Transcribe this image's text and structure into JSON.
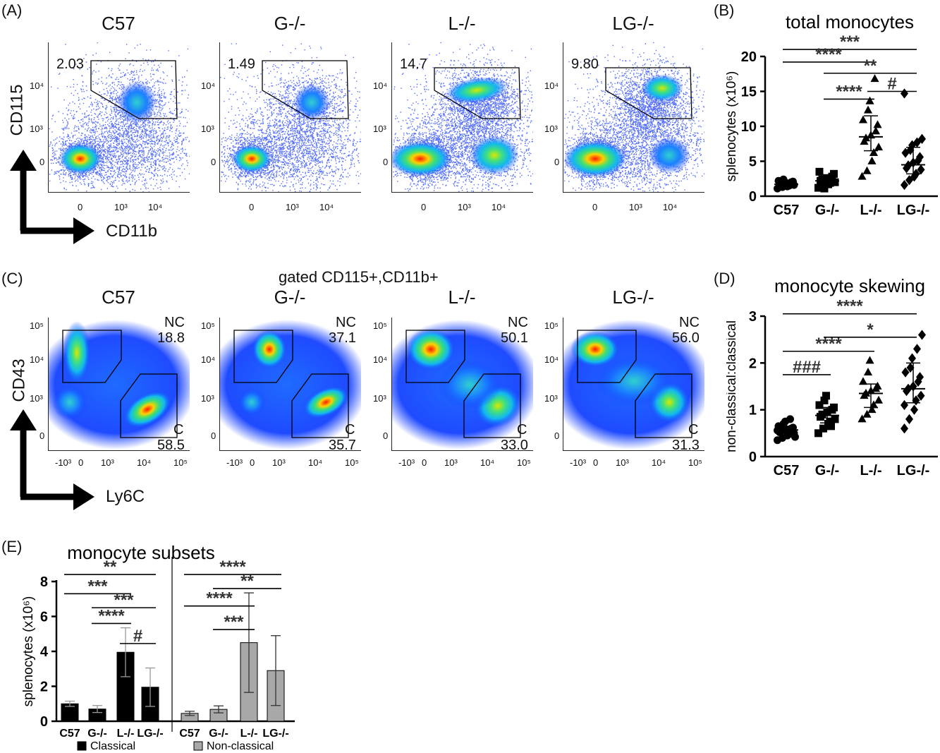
{
  "panels": {
    "A": {
      "letter": "(A)",
      "x_axis": "CD11b",
      "y_axis": "CD115",
      "x_ticks": [
        "0",
        "10³",
        "10⁴"
      ],
      "y_ticks": [
        "0",
        "10³",
        "10⁴"
      ],
      "plots": [
        {
          "title": "C57",
          "gate": "2.03"
        },
        {
          "title": "G-/-",
          "gate": "1.49"
        },
        {
          "title": "L-/-",
          "gate": "14.7"
        },
        {
          "title": "LG-/-",
          "gate": "9.80"
        }
      ]
    },
    "C": {
      "letter": "(C)",
      "header": "gated CD115+,CD11b+",
      "x_axis": "Ly6C",
      "y_axis": "CD43",
      "x_ticks": [
        "-10³",
        "0",
        "10³",
        "10⁴",
        "10⁵"
      ],
      "y_ticks": [
        "0",
        "10³",
        "10⁴",
        "10⁵"
      ],
      "gate_nc_label": "NC",
      "gate_c_label": "C",
      "plots": [
        {
          "title": "C57",
          "nc": "18.8",
          "c": "58.5"
        },
        {
          "title": "G-/-",
          "nc": "37.1",
          "c": "35.7"
        },
        {
          "title": "L-/-",
          "nc": "50.1",
          "c": "33.0"
        },
        {
          "title": "LG-/-",
          "nc": "56.0",
          "c": "31.3"
        }
      ]
    }
  },
  "chart_data": [
    {
      "panel": "(B)",
      "type": "scatter",
      "title": "total monocytes",
      "ylabel": "splenocytes (x10⁶)",
      "ylim": [
        0,
        20
      ],
      "yticks": [
        0,
        5,
        10,
        15,
        20
      ],
      "categories": [
        "C57",
        "G-/-",
        "L-/-",
        "LG-/-"
      ],
      "markers": [
        "circle",
        "square",
        "triangle",
        "diamond"
      ],
      "groups": [
        {
          "values": [
            1.1,
            1.3,
            1.4,
            1.5,
            1.6,
            1.7,
            1.8,
            1.9,
            2.0,
            2.1,
            2.2,
            2.4
          ],
          "median": 1.7,
          "q1": 1.4,
          "q3": 2.0
        },
        {
          "values": [
            1.2,
            1.5,
            1.7,
            1.9,
            2.0,
            2.2,
            2.4,
            2.6,
            2.8,
            3.2,
            3.5,
            1.1,
            2.3
          ],
          "median": 2.2,
          "q1": 1.7,
          "q3": 2.7
        },
        {
          "values": [
            2.8,
            3.6,
            5.0,
            6.2,
            7.0,
            7.8,
            8.3,
            8.7,
            9.3,
            10.2,
            10.9,
            12.3,
            13.6,
            16.8
          ],
          "median": 8.5,
          "q1": 6.5,
          "q3": 11.5
        },
        {
          "values": [
            1.6,
            2.3,
            2.8,
            3.2,
            3.8,
            4.0,
            4.4,
            4.8,
            5.1,
            5.6,
            6.2,
            6.6,
            7.3,
            7.7,
            8.2,
            14.7
          ],
          "median": 4.5,
          "q1": 3.2,
          "q3": 7.0
        }
      ],
      "brackets": [
        {
          "from": 0,
          "to": 3,
          "y": 21.0,
          "label": "***"
        },
        {
          "from": 0,
          "to": 2,
          "y": 19.2,
          "label": "****"
        },
        {
          "from": 1,
          "to": 3,
          "y": 17.6,
          "label": "**"
        },
        {
          "from": 1,
          "to": 2,
          "y": 13.9,
          "label": "****"
        },
        {
          "from": 2,
          "to": 3,
          "y": 15.0,
          "label": "#"
        }
      ]
    },
    {
      "panel": "(D)",
      "type": "scatter",
      "title": "monocyte skewing",
      "ylabel": "non-classical:classical",
      "ylim": [
        0,
        3
      ],
      "yticks": [
        0,
        1,
        2,
        3
      ],
      "categories": [
        "C57",
        "G-/-",
        "L-/-",
        "LG-/-"
      ],
      "markers": [
        "circle",
        "square",
        "triangle",
        "diamond"
      ],
      "groups": [
        {
          "values": [
            0.35,
            0.4,
            0.45,
            0.48,
            0.5,
            0.52,
            0.55,
            0.58,
            0.6,
            0.62,
            0.65,
            0.7,
            0.75,
            0.8,
            0.42,
            0.56,
            0.66
          ],
          "median": 0.57,
          "q1": 0.45,
          "q3": 0.65
        },
        {
          "values": [
            0.5,
            0.6,
            0.7,
            0.75,
            0.8,
            0.85,
            0.9,
            0.95,
            1.0,
            1.05,
            1.1,
            1.2,
            1.3,
            0.65
          ],
          "median": 0.88,
          "q1": 0.72,
          "q3": 1.05
        },
        {
          "values": [
            0.8,
            0.9,
            1.0,
            1.1,
            1.2,
            1.3,
            1.35,
            1.4,
            1.45,
            1.5,
            1.6,
            1.8,
            2.05
          ],
          "median": 1.35,
          "q1": 1.05,
          "q3": 1.55
        },
        {
          "values": [
            0.6,
            0.8,
            1.0,
            1.2,
            1.3,
            1.4,
            1.45,
            1.5,
            1.6,
            1.7,
            1.8,
            1.9,
            2.1,
            2.3,
            2.6,
            1.1
          ],
          "median": 1.45,
          "q1": 1.15,
          "q3": 2.0
        }
      ],
      "brackets": [
        {
          "from": 0,
          "to": 3,
          "y": 3.05,
          "label": "****"
        },
        {
          "from": 1,
          "to": 3,
          "y": 2.55,
          "label": "*"
        },
        {
          "from": 0,
          "to": 2,
          "y": 2.25,
          "label": "****"
        },
        {
          "from": 0,
          "to": 1,
          "y": 1.75,
          "label": "###"
        }
      ]
    },
    {
      "panel": "(E)",
      "type": "bar",
      "title": "monocyte subsets",
      "ylabel": "splenocytes (x10⁶)",
      "ylim": [
        0,
        8
      ],
      "yticks": [
        0,
        2,
        4,
        6,
        8
      ],
      "categories": [
        "C57",
        "G-/-",
        "L-/-",
        "LG-/-"
      ],
      "series": [
        {
          "name": "Classical",
          "color": "#000000",
          "values": [
            1.0,
            0.7,
            3.95,
            1.95
          ],
          "err": [
            0.15,
            0.2,
            1.4,
            1.1
          ],
          "brackets": [
            {
              "from": 0,
              "to": 3,
              "y": 8.4,
              "label": "**"
            },
            {
              "from": 0,
              "to": 2,
              "y": 7.3,
              "label": "***"
            },
            {
              "from": 1,
              "to": 3,
              "y": 6.5,
              "label": "***"
            },
            {
              "from": 1,
              "to": 2,
              "y": 5.6,
              "label": "****"
            },
            {
              "from": 2,
              "to": 3,
              "y": 4.45,
              "label": "#"
            }
          ]
        },
        {
          "name": "Non-classical",
          "color": "#a8a8a8",
          "values": [
            0.45,
            0.68,
            4.5,
            2.9
          ],
          "err": [
            0.12,
            0.2,
            2.85,
            2.0
          ],
          "brackets": [
            {
              "from": 0,
              "to": 3,
              "y": 8.4,
              "label": "****"
            },
            {
              "from": 1,
              "to": 3,
              "y": 7.6,
              "label": "**"
            },
            {
              "from": 0,
              "to": 2,
              "y": 6.6,
              "label": "****"
            },
            {
              "from": 1,
              "to": 2,
              "y": 5.25,
              "label": "***"
            }
          ]
        }
      ]
    }
  ]
}
